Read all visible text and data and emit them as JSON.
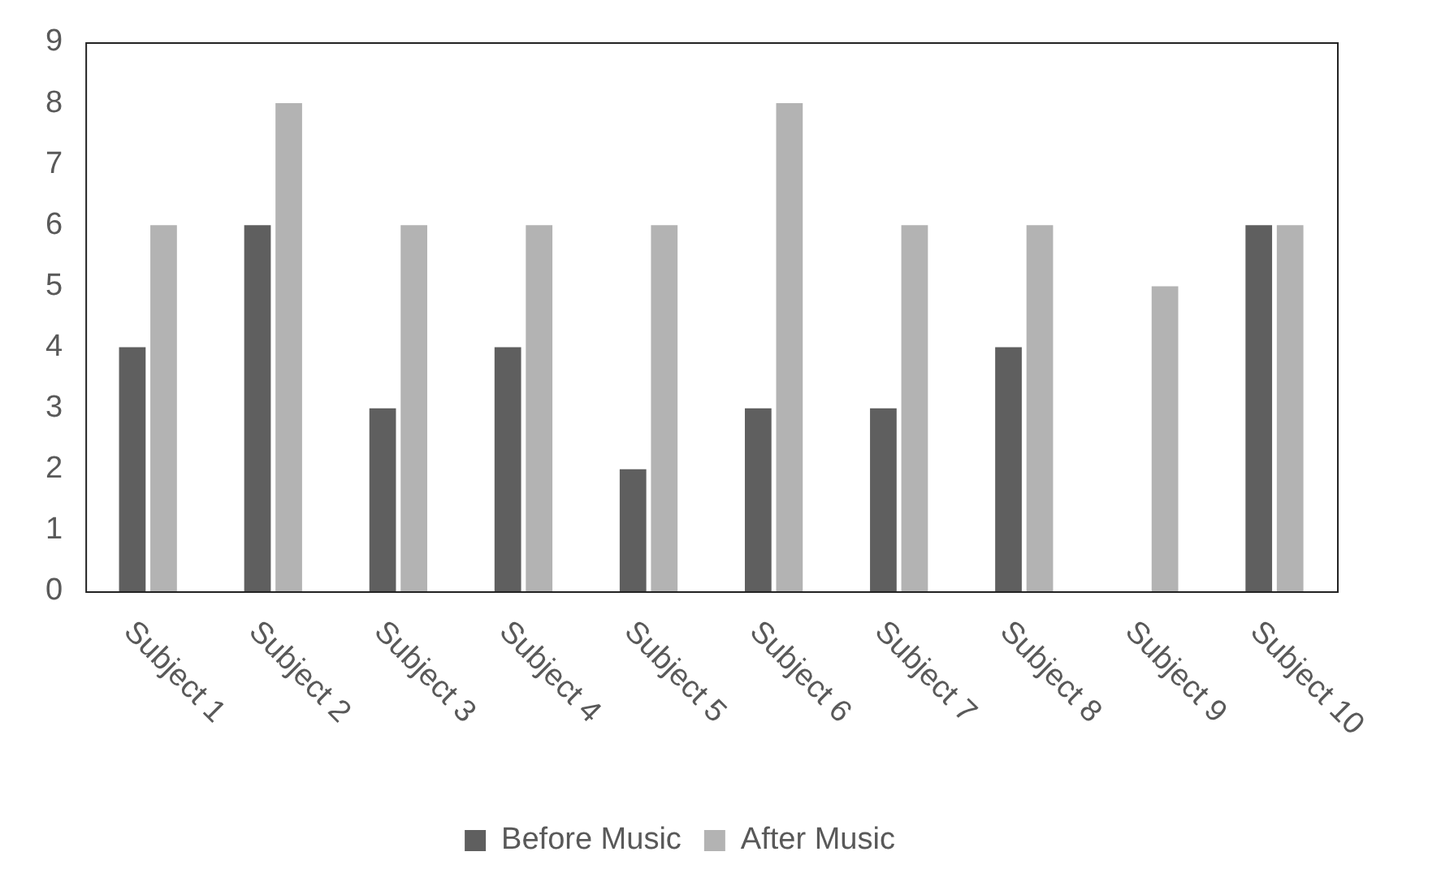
{
  "chart_data": {
    "type": "bar",
    "categories": [
      "Subject 1",
      "Subject 2",
      "Subject 3",
      "Subject 4",
      "Subject 5",
      "Subject 6",
      "Subject 7",
      "Subject 8",
      "Subject 9",
      "Subject 10"
    ],
    "series": [
      {
        "name": "Before Music",
        "color": "#5f5f5f",
        "values": [
          4,
          6,
          3,
          4,
          2,
          3,
          3,
          4,
          0,
          6
        ]
      },
      {
        "name": "After Music",
        "color": "#b3b3b3",
        "values": [
          6,
          8,
          6,
          6,
          6,
          8,
          6,
          6,
          5,
          6
        ]
      }
    ],
    "ylim": [
      0,
      9
    ],
    "yticks": [
      0,
      1,
      2,
      3,
      4,
      5,
      6,
      7,
      8,
      9
    ],
    "grid": false,
    "legend": "bottom"
  }
}
